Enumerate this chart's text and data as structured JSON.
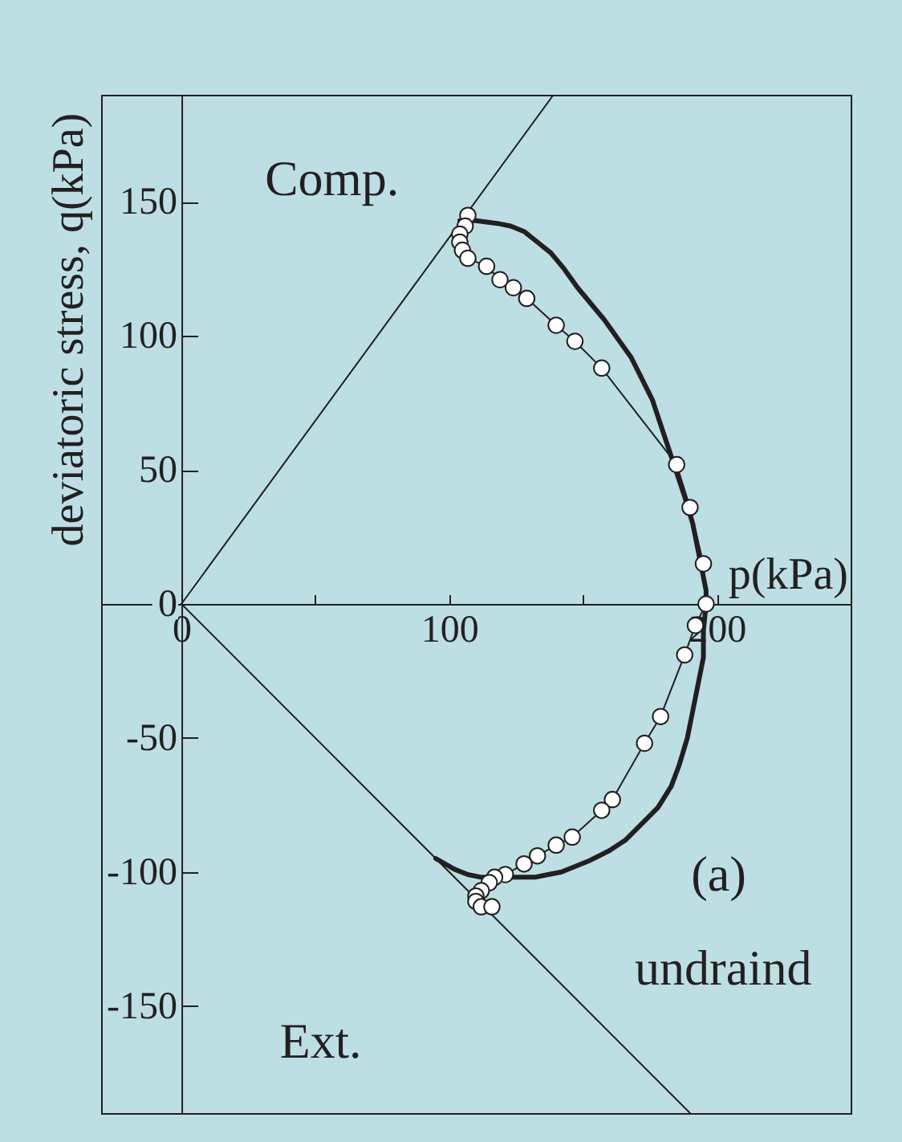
{
  "chart_data": {
    "type": "line",
    "xlabel": "p(kPa)",
    "ylabel": "deviatoric stress, q(kPa)",
    "xlim": [
      -30,
      250
    ],
    "ylim": [
      -190,
      190
    ],
    "xticks": [
      0,
      {
        "value": 50,
        "label": null
      },
      100,
      {
        "value": 150,
        "label": null
      },
      200
    ],
    "yticks": [
      -150,
      -100,
      -50,
      0,
      50,
      100,
      150
    ],
    "annotations": [
      "Comp.",
      "Ext.",
      "(a)",
      "undraind"
    ],
    "line_style": "solid",
    "series": [
      {
        "color": "#231f20",
        "marker": "none",
        "x": [
          104,
          110,
          118,
          123,
          128,
          133,
          138,
          143,
          148,
          153,
          158,
          163,
          168,
          172,
          176,
          179,
          182,
          185,
          188,
          191,
          193,
          195,
          196,
          196,
          195,
          195,
          193,
          191,
          189,
          186,
          183,
          178,
          172,
          166,
          160,
          152,
          147,
          142,
          137,
          132,
          122,
          112,
          107,
          102,
          95
        ],
        "values": [
          143,
          143,
          142,
          141,
          139,
          135,
          131,
          125,
          118,
          112,
          106,
          99,
          92,
          84,
          76,
          67,
          58,
          49,
          40,
          30,
          20,
          10,
          5,
          0,
          -10,
          -20,
          -30,
          -40,
          -50,
          -60,
          -68,
          -76,
          -82,
          -88,
          -92,
          -96,
          -98,
          -100,
          -101,
          -102,
          -102,
          -102,
          -101,
          -99,
          -95
        ]
      },
      {
        "color": "#231f20",
        "marker": "circle",
        "x": [
          107,
          106,
          104,
          104,
          105,
          107,
          114,
          119,
          124,
          129,
          140,
          147,
          157,
          185,
          190,
          195,
          196,
          192,
          188,
          179,
          173,
          161,
          157,
          146,
          140,
          133,
          128,
          121,
          117,
          115,
          112,
          110,
          110,
          112,
          116
        ],
        "values": [
          145,
          141,
          138,
          135,
          132,
          129,
          126,
          121,
          118,
          114,
          104,
          98,
          88,
          52,
          36,
          15,
          0,
          -8,
          -19,
          -42,
          -52,
          -73,
          -77,
          -87,
          -90,
          -94,
          -97,
          -101,
          -102,
          -104,
          -107,
          -109,
          -111,
          -113,
          -113
        ]
      },
      {
        "color": "#231f20",
        "marker": "none",
        "x": [
          0,
          139
        ],
        "values": [
          0,
          190
        ]
      },
      {
        "color": "#231f20",
        "marker": "none",
        "x": [
          0,
          190
        ],
        "values": [
          0,
          -190
        ]
      }
    ]
  }
}
